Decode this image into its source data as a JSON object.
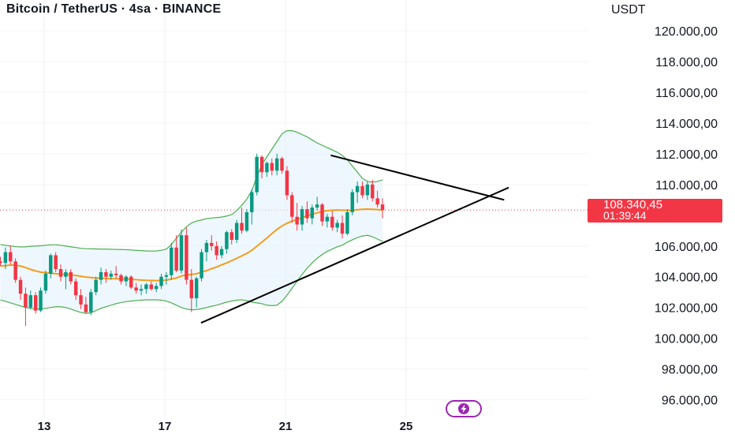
{
  "header": {
    "title": "Bitcoin / TetherUS · 4sa · BINANCE",
    "currency": "USDT"
  },
  "price_badge": {
    "price": "108.340,45",
    "countdown": "01:39:44"
  },
  "icons": {
    "flash": "lightning-icon"
  },
  "colors": {
    "up": "#089981",
    "down": "#f23645",
    "ma": "#f59c1b",
    "bands": "#4caf50",
    "band_fill": "#e3f2fd",
    "trendline": "#000000"
  },
  "chart_data": {
    "type": "candlestick",
    "title": "Bitcoin / TetherUS · 4sa · BINANCE",
    "y_unit": "USDT",
    "ylim": [
      94800,
      122000
    ],
    "y_ticks": [
      "120.000,00",
      "118.000,00",
      "116.000,00",
      "114.000,00",
      "112.000,00",
      "110.000,00",
      "106.000,00",
      "104.000,00",
      "102.000,00",
      "100.000,00",
      "98.000,00",
      "96.000,00"
    ],
    "x_ticks": [
      "13",
      "17",
      "21",
      "25"
    ],
    "last_price": 108340.45,
    "candles": [
      [
        105000,
        105300,
        104700,
        104900
      ],
      [
        104900,
        105900,
        104500,
        105600
      ],
      [
        105600,
        106000,
        104800,
        105000
      ],
      [
        105000,
        105200,
        103600,
        103800
      ],
      [
        103800,
        104000,
        102500,
        102900
      ],
      [
        102900,
        103300,
        100800,
        102000
      ],
      [
        102000,
        103100,
        101900,
        102800
      ],
      [
        102800,
        103000,
        101600,
        101800
      ],
      [
        101800,
        103300,
        101700,
        103100
      ],
      [
        103100,
        104400,
        102900,
        104200
      ],
      [
        104200,
        105500,
        103900,
        105400
      ],
      [
        105400,
        105600,
        104300,
        104500
      ],
      [
        104500,
        104800,
        103700,
        104000
      ],
      [
        104000,
        104500,
        103200,
        104300
      ],
      [
        104300,
        104500,
        103500,
        103700
      ],
      [
        103700,
        103900,
        102500,
        102800
      ],
      [
        102800,
        103200,
        101900,
        102200
      ],
      [
        102200,
        102700,
        101600,
        101700
      ],
      [
        101700,
        103200,
        101500,
        103000
      ],
      [
        103000,
        104000,
        102800,
        103800
      ],
      [
        103800,
        104600,
        103500,
        104300
      ],
      [
        104300,
        104500,
        103600,
        104000
      ],
      [
        104000,
        104400,
        103800,
        104200
      ],
      [
        104200,
        104700,
        103900,
        104100
      ],
      [
        104100,
        104200,
        103500,
        103700
      ],
      [
        103700,
        104100,
        103400,
        104000
      ],
      [
        104000,
        104100,
        103200,
        103300
      ],
      [
        103300,
        103600,
        102900,
        103100
      ],
      [
        103100,
        103500,
        102800,
        103200
      ],
      [
        103200,
        103600,
        102900,
        103500
      ],
      [
        103500,
        103700,
        103100,
        103200
      ],
      [
        103200,
        103600,
        103000,
        103400
      ],
      [
        103400,
        104200,
        103200,
        104000
      ],
      [
        104000,
        104300,
        103500,
        104100
      ],
      [
        104100,
        106200,
        103800,
        105900
      ],
      [
        105900,
        106700,
        104300,
        104400
      ],
      [
        104400,
        107100,
        104200,
        106700
      ],
      [
        106700,
        107200,
        103500,
        103800
      ],
      [
        103800,
        104500,
        101700,
        102600
      ],
      [
        102600,
        104000,
        102000,
        103900
      ],
      [
        103900,
        105800,
        103700,
        105600
      ],
      [
        105600,
        106400,
        105000,
        106200
      ],
      [
        106200,
        106700,
        105700,
        106000
      ],
      [
        106000,
        106300,
        105100,
        105400
      ],
      [
        105400,
        106000,
        105200,
        105800
      ],
      [
        105800,
        107000,
        105500,
        106900
      ],
      [
        106900,
        107100,
        106100,
        106400
      ],
      [
        106400,
        107700,
        106200,
        107500
      ],
      [
        107500,
        108500,
        106800,
        107000
      ],
      [
        107000,
        108400,
        106900,
        108200
      ],
      [
        108200,
        109700,
        107400,
        109500
      ],
      [
        109500,
        112000,
        109300,
        111800
      ],
      [
        111800,
        111900,
        110400,
        110800
      ],
      [
        110800,
        111500,
        110500,
        111400
      ],
      [
        111400,
        111700,
        110600,
        110900
      ],
      [
        110900,
        112000,
        110600,
        111700
      ],
      [
        111700,
        111800,
        110700,
        110900
      ],
      [
        110900,
        111200,
        109000,
        109300
      ],
      [
        109300,
        109500,
        107500,
        107900
      ],
      [
        107900,
        108800,
        107000,
        107400
      ],
      [
        107400,
        108600,
        107000,
        108400
      ],
      [
        108400,
        108900,
        107500,
        107800
      ],
      [
        107800,
        108700,
        107400,
        108500
      ],
      [
        108500,
        109200,
        108300,
        108700
      ],
      [
        108700,
        108800,
        107300,
        107600
      ],
      [
        107600,
        108100,
        107200,
        107900
      ],
      [
        107900,
        108300,
        107000,
        107200
      ],
      [
        107200,
        107700,
        106900,
        107500
      ],
      [
        107500,
        108000,
        106500,
        106800
      ],
      [
        106800,
        108400,
        106700,
        108200
      ],
      [
        108200,
        109700,
        108000,
        109500
      ],
      [
        109500,
        110200,
        108800,
        109900
      ],
      [
        109900,
        110200,
        109100,
        109300
      ],
      [
        109300,
        110200,
        109000,
        110000
      ],
      [
        110000,
        110300,
        108900,
        109100
      ],
      [
        109100,
        109600,
        108500,
        108700
      ],
      [
        108700,
        109100,
        107800,
        108340
      ]
    ],
    "ma": [
      104700,
      104720,
      104760,
      104750,
      104700,
      104600,
      104480,
      104380,
      104300,
      104260,
      104230,
      104200,
      104180,
      104150,
      104120,
      104080,
      104030,
      103980,
      103950,
      103920,
      103900,
      103890,
      103880,
      103870,
      103860,
      103850,
      103830,
      103810,
      103790,
      103770,
      103760,
      103750,
      103760,
      103780,
      103850,
      103920,
      104050,
      104120,
      104150,
      104200,
      104300,
      104400,
      104520,
      104640,
      104770,
      104900,
      105050,
      105200,
      105360,
      105520,
      105720,
      105980,
      106250,
      106520,
      106800,
      107080,
      107300,
      107480,
      107620,
      107720,
      107850,
      107960,
      108060,
      108160,
      108240,
      108300,
      108330,
      108340,
      108330,
      108320,
      108330,
      108360,
      108390,
      108400,
      108390,
      108370,
      108340
    ],
    "bb_upper": [
      106100,
      106050,
      106000,
      105960,
      105940,
      105950,
      105980,
      106000,
      106020,
      106050,
      106080,
      106080,
      106050,
      106000,
      105950,
      105900,
      105850,
      105830,
      105820,
      105810,
      105800,
      105800,
      105790,
      105780,
      105770,
      105760,
      105740,
      105720,
      105700,
      105680,
      105670,
      105680,
      105720,
      105800,
      106100,
      106500,
      106900,
      107250,
      107500,
      107620,
      107700,
      107780,
      107820,
      107850,
      107880,
      107950,
      108050,
      108300,
      108650,
      109050,
      109600,
      110500,
      111300,
      111800,
      112300,
      112800,
      113300,
      113500,
      113500,
      113400,
      113250,
      113100,
      112900,
      112700,
      112550,
      112400,
      112250,
      112100,
      111900,
      111600,
      111200,
      110800,
      110400,
      110200,
      110150,
      110200,
      110300
    ],
    "bb_lower": [
      102500,
      102400,
      102300,
      102200,
      102100,
      102000,
      101950,
      101900,
      101900,
      101950,
      102000,
      102050,
      102050,
      102000,
      101900,
      101780,
      101680,
      101620,
      101650,
      101800,
      101950,
      102050,
      102150,
      102250,
      102320,
      102380,
      102420,
      102450,
      102480,
      102500,
      102500,
      102500,
      102480,
      102420,
      102300,
      102150,
      102000,
      101900,
      101850,
      101870,
      101920,
      102000,
      102080,
      102150,
      102250,
      102350,
      102420,
      102480,
      102500,
      102450,
      102350,
      102300,
      102250,
      102150,
      102120,
      102150,
      102400,
      102800,
      103250,
      103700,
      104150,
      104550,
      104900,
      105200,
      105450,
      105650,
      105800,
      105950,
      106050,
      106250,
      106400,
      106550,
      106650,
      106700,
      106600,
      106450,
      106300
    ],
    "trendlines": [
      {
        "from": [
          18.2,
          101000
        ],
        "to": [
          28.4,
          109800
        ]
      },
      {
        "from": [
          22.5,
          111900
        ],
        "to": [
          28.25,
          109000
        ]
      }
    ]
  }
}
